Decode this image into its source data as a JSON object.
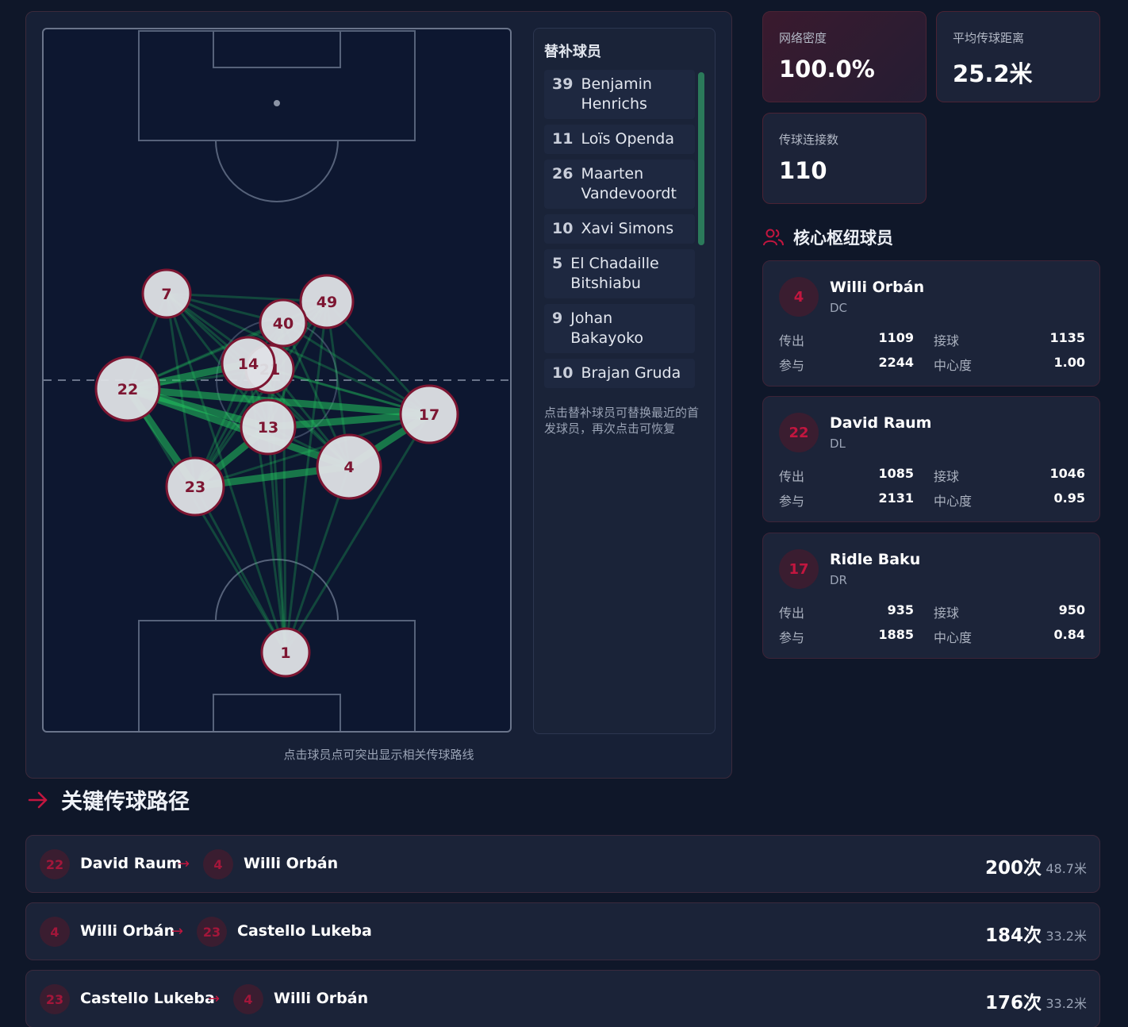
{
  "colors": {
    "accent": "#c2163f",
    "link": "#22c55e",
    "node_fill": "#dfe1e6",
    "node_border": "#7d1632"
  },
  "pitch": {
    "hint": "点击球员点可突出显示相关传球路线",
    "players": [
      {
        "num": "7"
      },
      {
        "num": "49"
      },
      {
        "num": "40"
      },
      {
        "num": "21"
      },
      {
        "num": "14"
      },
      {
        "num": "22"
      },
      {
        "num": "17"
      },
      {
        "num": "13"
      },
      {
        "num": "4"
      },
      {
        "num": "23"
      },
      {
        "num": "1"
      }
    ]
  },
  "subs": {
    "title": "替补球员",
    "items": [
      {
        "num": "39",
        "name": "Benjamin Henrichs"
      },
      {
        "num": "11",
        "name": "Loïs Openda"
      },
      {
        "num": "26",
        "name": "Maarten Vandevoordt"
      },
      {
        "num": "10",
        "name": "Xavi Simons"
      },
      {
        "num": "5",
        "name": "El Chadaille Bitshiabu"
      },
      {
        "num": "9",
        "name": "Johan Bakayoko"
      },
      {
        "num": "10",
        "name": "Brajan Gruda"
      }
    ],
    "hint": "点击替补球员可替换最近的首发球员，再次点击可恢复"
  },
  "stats": {
    "density": {
      "label": "网络密度",
      "value": "100.0%"
    },
    "avg_distance": {
      "label": "平均传球距离",
      "value": "25.2米"
    },
    "connections": {
      "label": "传球连接数",
      "value": "110"
    }
  },
  "hubs": {
    "title": "核心枢纽球员",
    "labels": {
      "passes": "传出",
      "received": "接球",
      "involvement": "参与",
      "centrality": "中心度"
    },
    "items": [
      {
        "num": "4",
        "name": "Willi Orbán",
        "pos": "DC",
        "passes": "1109",
        "received": "1135",
        "involvement": "2244",
        "centrality": "1.00"
      },
      {
        "num": "22",
        "name": "David Raum",
        "pos": "DL",
        "passes": "1085",
        "received": "1046",
        "involvement": "2131",
        "centrality": "0.95"
      },
      {
        "num": "17",
        "name": "Ridle Baku",
        "pos": "DR",
        "passes": "935",
        "received": "950",
        "involvement": "1885",
        "centrality": "0.84"
      }
    ]
  },
  "paths": {
    "title": "关键传球路径",
    "arrow": "→",
    "items": [
      {
        "from_num": "22",
        "from": "David Raum",
        "to_num": "4",
        "to": "Willi Orbán",
        "count": "200次",
        "distance": "48.7米"
      },
      {
        "from_num": "4",
        "from": "Willi Orbán",
        "to_num": "23",
        "to": "Castello Lukeba",
        "count": "184次",
        "distance": "33.2米"
      },
      {
        "from_num": "23",
        "from": "Castello Lukeba",
        "to_num": "4",
        "to": "Willi Orbán",
        "count": "176次",
        "distance": "33.2米"
      }
    ]
  }
}
